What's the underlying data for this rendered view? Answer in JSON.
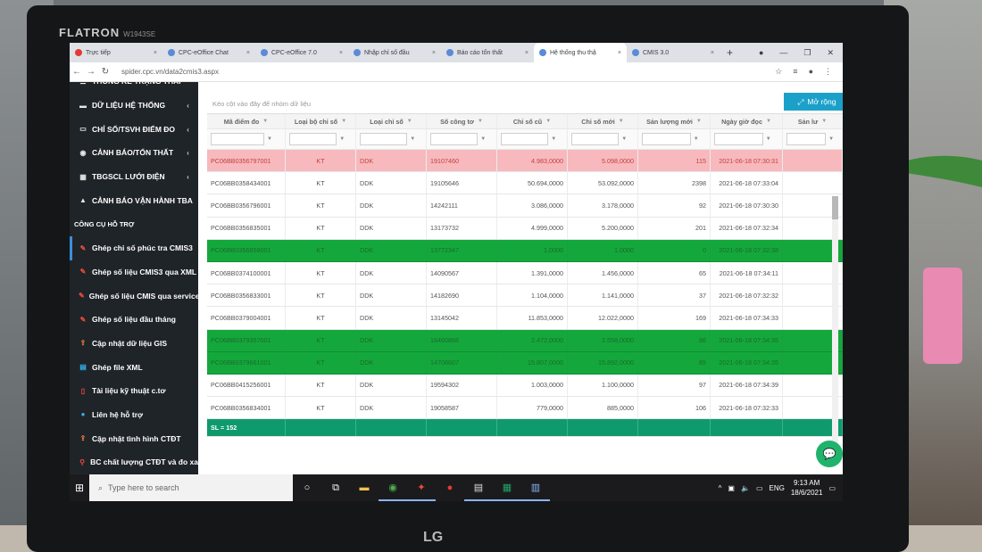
{
  "monitor": {
    "brand": "FLATRON",
    "model": "W1943SE",
    "maker": "LG"
  },
  "browser": {
    "tabs": [
      {
        "label": "Trực tiếp",
        "icon": "youtube-icon"
      },
      {
        "label": "CPC-eOffice Chat",
        "icon": "globe-icon"
      },
      {
        "label": "CPC-eOffice 7.0",
        "icon": "globe-icon"
      },
      {
        "label": "Nhập chỉ số đầu",
        "icon": "page-icon"
      },
      {
        "label": "Báo cáo tổn thất",
        "icon": "page-icon"
      },
      {
        "label": "Hệ thống thu thậ",
        "icon": "page-icon",
        "active": true
      },
      {
        "label": "CMIS 3.0",
        "icon": "globe-icon"
      }
    ],
    "url": "spider.cpc.vn/data2cmis3.aspx"
  },
  "sidebar": {
    "items": [
      {
        "label": "THỐNG KÊ TRẠNG THÁI",
        "icon": "list-icon",
        "chevron": false
      },
      {
        "label": "DỮ LIỆU HỆ THỐNG",
        "icon": "database-icon",
        "chevron": true
      },
      {
        "label": "CHỈ SỐ/TSVH ĐIỂM ĐO",
        "icon": "monitor-icon",
        "chevron": true
      },
      {
        "label": "CẢNH BÁO/TỔN THẤT",
        "icon": "eye-icon",
        "chevron": true
      },
      {
        "label": "TBGSCL LƯỚI ĐIỆN",
        "icon": "server-icon",
        "chevron": true
      },
      {
        "label": "CẢNH BÁO VẬN HÀNH TBA",
        "icon": "warning-icon",
        "chevron": false
      },
      {
        "label": "CÔNG CỤ HỖ TRỢ",
        "icon": "",
        "chevron": false,
        "section": true
      },
      {
        "label": "Ghép chỉ số phúc tra CMIS3",
        "icon": "edit-icon",
        "selected": true
      },
      {
        "label": "Ghép số liệu CMIS3 qua XML",
        "icon": "edit-icon"
      },
      {
        "label": "Ghép số liệu CMIS qua service",
        "icon": "edit-icon"
      },
      {
        "label": "Ghép số liệu đầu tháng",
        "icon": "edit-icon"
      },
      {
        "label": "Cập nhật dữ liệu GIS",
        "icon": "upload-icon"
      },
      {
        "label": "Ghép file XML",
        "icon": "file-icon"
      },
      {
        "label": "Tài liệu kỹ thuật c.tơ",
        "icon": "document-icon"
      },
      {
        "label": "Liên hệ hỗ trợ",
        "icon": "chat-icon"
      },
      {
        "label": "Cập nhật tình hình CTĐT",
        "icon": "upload-icon"
      },
      {
        "label": "BC chất lượng CTĐT và đo xa",
        "icon": "pin-icon"
      }
    ]
  },
  "grid": {
    "group_hint": "Kéo cột vào đây để nhóm dữ liệu",
    "expand_label": "Mở rộng",
    "columns": [
      "Mã điểm đo",
      "Loại bộ chỉ số",
      "Loại chỉ số",
      "Số công tơ",
      "Chỉ số cũ",
      "Chỉ số mới",
      "Sản lượng mới",
      "Ngày giờ đọc",
      "Sản lư"
    ],
    "rows": [
      {
        "status": "pink",
        "cells": [
          "PC06BB0356797001",
          "KT",
          "DDK",
          "19107460",
          "4.983,0000",
          "5.098,0000",
          "115",
          "2021-06-18 07:30:31"
        ]
      },
      {
        "status": "",
        "cells": [
          "PC06BB0358434001",
          "KT",
          "DDK",
          "19105646",
          "50.694,0000",
          "53.092,0000",
          "2398",
          "2021-06-18 07:33:04"
        ]
      },
      {
        "status": "",
        "cells": [
          "PC06BB0356796001",
          "KT",
          "DDK",
          "14242111",
          "3.086,0000",
          "3.178,0000",
          "92",
          "2021-06-18 07:30:30"
        ]
      },
      {
        "status": "",
        "cells": [
          "PC06BB0356835001",
          "KT",
          "DDK",
          "13173732",
          "4.999,0000",
          "5.200,0000",
          "201",
          "2021-06-18 07:32:34"
        ]
      },
      {
        "status": "green",
        "cells": [
          "PC06BB0356858001",
          "KT",
          "DDK",
          "13772347",
          "1,0000",
          "1,0000",
          "0",
          "2021-06-18 07:32:38"
        ]
      },
      {
        "status": "",
        "cells": [
          "PC06BB0374100001",
          "KT",
          "DDK",
          "14090567",
          "1.391,0000",
          "1.456,0000",
          "65",
          "2021-06-18 07:34:11"
        ]
      },
      {
        "status": "",
        "cells": [
          "PC06BB0356833001",
          "KT",
          "DDK",
          "14182690",
          "1.104,0000",
          "1.141,0000",
          "37",
          "2021-06-18 07:32:32"
        ]
      },
      {
        "status": "",
        "cells": [
          "PC06BB0379004001",
          "KT",
          "DDK",
          "13145042",
          "11.853,0000",
          "12.022,0000",
          "169",
          "2021-06-18 07:34:33"
        ]
      },
      {
        "status": "green",
        "cells": [
          "PC06BB0379357001",
          "KT",
          "DDK",
          "18460868",
          "2.472,0000",
          "2.558,0000",
          "86",
          "2021-06-18 07:34:35"
        ]
      },
      {
        "status": "green",
        "cells": [
          "PC06BB0379661001",
          "KT",
          "DDK",
          "14708607",
          "15.807,0000",
          "15.892,0000",
          "85",
          "2021-06-18 07:34:35"
        ]
      },
      {
        "status": "",
        "cells": [
          "PC06BB0415256001",
          "KT",
          "DDK",
          "19594302",
          "1.003,0000",
          "1.100,0000",
          "97",
          "2021-06-18 07:34:39"
        ]
      },
      {
        "status": "",
        "cells": [
          "PC06BB0356834001",
          "KT",
          "DDK",
          "19058587",
          "779,0000",
          "885,0000",
          "106",
          "2021-06-18 07:32:33"
        ]
      }
    ],
    "footer_count": "SL = 152"
  },
  "taskbar": {
    "search_placeholder": "Type here to search",
    "language": "ENG",
    "time": "9:13 AM",
    "date": "18/6/2021"
  }
}
